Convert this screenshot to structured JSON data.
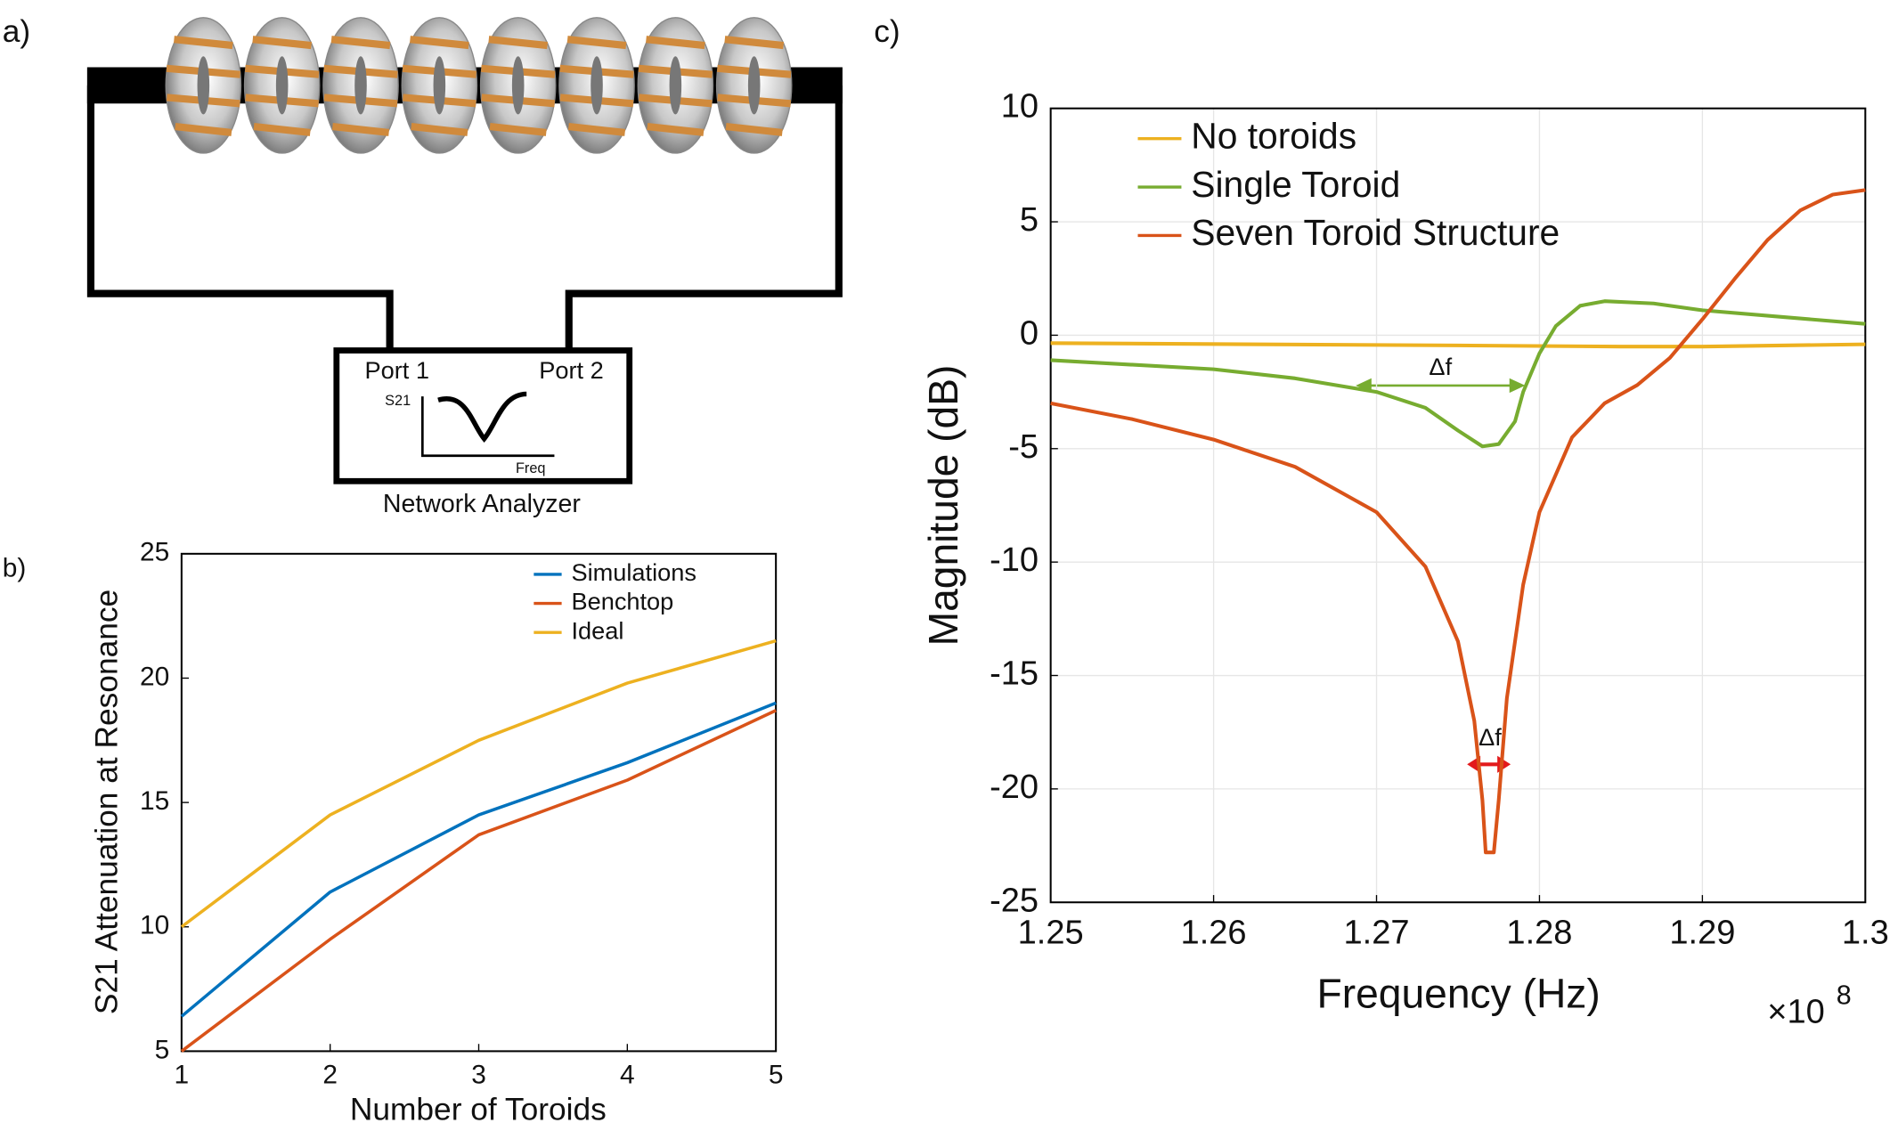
{
  "panel_labels": [
    "a)",
    "b)",
    "c)"
  ],
  "diagram": {
    "port1": "Port 1",
    "port2": "Port 2",
    "plot_ylabel": "S21",
    "plot_xlabel": "Freq",
    "caption": "Network Analyzer"
  },
  "chart_data": [
    {
      "type": "line",
      "x_label": "Number of Toroids",
      "y_label": "S21 Attenuation at Resonance",
      "x": [
        1,
        2,
        3,
        4,
        5
      ],
      "xlim": [
        1,
        5
      ],
      "xticks": [
        1,
        2,
        3,
        4,
        5
      ],
      "ylim": [
        5,
        25
      ],
      "yticks": [
        5,
        10,
        15,
        20,
        25
      ],
      "grid": false,
      "legend": "upper-right",
      "series": [
        {
          "name": "Simulations",
          "color": "#0072bd",
          "values": [
            6.4,
            11.4,
            14.5,
            16.6,
            19.0
          ]
        },
        {
          "name": "Benchtop",
          "color": "#d95319",
          "values": [
            5.0,
            9.5,
            13.7,
            15.9,
            18.7
          ]
        },
        {
          "name": "Ideal",
          "color": "#edb120",
          "values": [
            10.0,
            14.5,
            17.5,
            19.8,
            21.5
          ]
        }
      ]
    },
    {
      "type": "line",
      "x_label": "Frequency (Hz)",
      "y_label": "Magnitude (dB)",
      "x_multiplier": "×10",
      "x_exponent": "8",
      "xlim": [
        125000000,
        130000000
      ],
      "xticks": [
        {
          "value": 125000000,
          "label": "1.25"
        },
        {
          "value": 126000000,
          "label": "1.26"
        },
        {
          "value": 127000000,
          "label": "1.27"
        },
        {
          "value": 128000000,
          "label": "1.28"
        },
        {
          "value": 129000000,
          "label": "1.29"
        },
        {
          "value": 130000000,
          "label": "1.3"
        }
      ],
      "ylim": [
        -25,
        10
      ],
      "yticks": [
        -25,
        -20,
        -15,
        -10,
        -5,
        0,
        5,
        10
      ],
      "grid": true,
      "legend": "upper-left",
      "annotations": [
        {
          "text": "Δf"
        },
        {
          "text": "Δf"
        }
      ],
      "series": [
        {
          "name": "No toroids",
          "color": "#edb120",
          "x": [
            125000000,
            127500000,
            128500000,
            129000000,
            130000000
          ],
          "values": [
            -0.35,
            -0.45,
            -0.5,
            -0.5,
            -0.4
          ]
        },
        {
          "name": "Single Toroid",
          "color": "#77ac30",
          "x": [
            125000000,
            126000000,
            126500000,
            127000000,
            127300000,
            127500000,
            127650000,
            127750000,
            127850000,
            127900000,
            128000000,
            128100000,
            128250000,
            128400000,
            128700000,
            129000000,
            129500000,
            130000000
          ],
          "values": [
            -1.1,
            -1.5,
            -1.9,
            -2.5,
            -3.2,
            -4.2,
            -4.9,
            -4.8,
            -3.8,
            -2.5,
            -0.8,
            0.4,
            1.3,
            1.5,
            1.4,
            1.1,
            0.8,
            0.5
          ]
        },
        {
          "name": "Seven Toroid Structure",
          "color": "#d95319",
          "x": [
            125000000,
            125500000,
            126000000,
            126500000,
            127000000,
            127300000,
            127500000,
            127600000,
            127650000,
            127670000,
            127720000,
            127750000,
            127800000,
            127900000,
            128000000,
            128200000,
            128400000,
            128600000,
            128800000,
            129000000,
            129200000,
            129400000,
            129600000,
            129800000,
            130000000
          ],
          "values": [
            -3.0,
            -3.7,
            -4.6,
            -5.8,
            -7.8,
            -10.2,
            -13.5,
            -17.0,
            -20.5,
            -22.8,
            -22.8,
            -20.5,
            -16.0,
            -11.0,
            -7.8,
            -4.5,
            -3.0,
            -2.2,
            -1.0,
            0.7,
            2.5,
            4.2,
            5.5,
            6.2,
            6.4
          ]
        }
      ]
    }
  ]
}
